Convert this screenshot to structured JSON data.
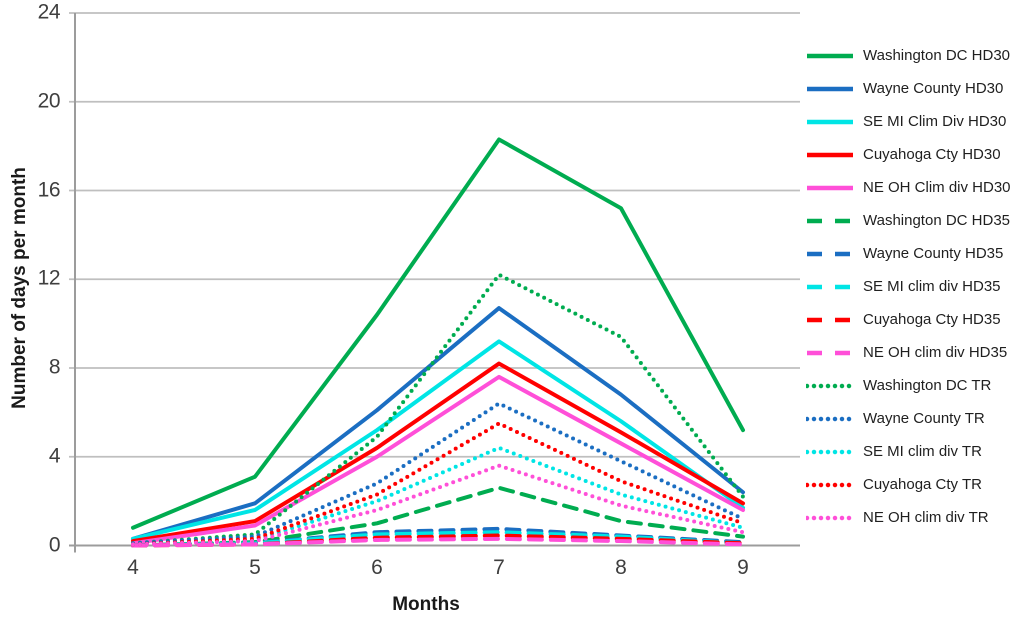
{
  "chart_data": {
    "type": "line",
    "title": "",
    "xlabel": "Months",
    "ylabel": "Number of days per month",
    "x": [
      4,
      5,
      6,
      7,
      8,
      9
    ],
    "x_tick_labels": [
      "4",
      "5",
      "6",
      "7",
      "8",
      "9"
    ],
    "y_ticks": [
      0,
      4,
      8,
      12,
      16,
      20,
      24
    ],
    "ylim": [
      0,
      24
    ],
    "xlim": [
      3.5,
      9.5
    ],
    "grid": "horizontal",
    "legend_position": "right",
    "series": [
      {
        "label": "Washington DC HD30",
        "color": "#00AC50",
        "style": "solid",
        "values": [
          0.8,
          3.1,
          10.4,
          18.3,
          15.2,
          5.2
        ]
      },
      {
        "label": "Wayne County HD30",
        "color": "#1B6EC2",
        "style": "solid",
        "values": [
          0.3,
          1.9,
          6.1,
          10.7,
          6.8,
          2.4
        ]
      },
      {
        "label": "SE MI Clim Div HD30",
        "color": "#00E5E5",
        "style": "solid",
        "values": [
          0.3,
          1.6,
          5.2,
          9.2,
          5.6,
          1.7
        ]
      },
      {
        "label": "Cuyahoga Cty HD30",
        "color": "#FF0000",
        "style": "solid",
        "values": [
          0.2,
          1.1,
          4.4,
          8.2,
          5.1,
          1.9
        ]
      },
      {
        "label": "NE OH Clim div HD30",
        "color": "#FF4FD8",
        "style": "solid",
        "values": [
          0.1,
          0.9,
          4.0,
          7.6,
          4.6,
          1.6
        ]
      },
      {
        "label": "Washington DC HD35",
        "color": "#00AC50",
        "style": "dashed",
        "values": [
          0.0,
          0.15,
          1.0,
          2.6,
          1.1,
          0.4
        ]
      },
      {
        "label": "Wayne County HD35",
        "color": "#1B6EC2",
        "style": "dashed",
        "values": [
          0.0,
          0.1,
          0.6,
          0.75,
          0.45,
          0.15
        ]
      },
      {
        "label": "SE MI clim div HD35",
        "color": "#00E5E5",
        "style": "dashed",
        "values": [
          0.0,
          0.1,
          0.5,
          0.6,
          0.4,
          0.1
        ]
      },
      {
        "label": "Cuyahoga Cty HD35",
        "color": "#FF0000",
        "style": "dashed",
        "values": [
          0.0,
          0.05,
          0.35,
          0.45,
          0.3,
          0.1
        ]
      },
      {
        "label": "NE OH clim div HD35",
        "color": "#FF4FD8",
        "style": "dashed",
        "values": [
          0.0,
          0.05,
          0.25,
          0.3,
          0.2,
          0.05
        ]
      },
      {
        "label": "Washington DC TR",
        "color": "#00AC50",
        "style": "dotted",
        "values": [
          0.1,
          0.5,
          4.9,
          12.2,
          9.4,
          2.2
        ]
      },
      {
        "label": "Wayne County TR",
        "color": "#1B6EC2",
        "style": "dotted",
        "values": [
          0.1,
          0.4,
          2.8,
          6.4,
          3.8,
          1.2
        ]
      },
      {
        "label": "SE MI clim div TR",
        "color": "#00E5E5",
        "style": "dotted",
        "values": [
          0.05,
          0.25,
          2.0,
          4.4,
          2.3,
          0.8
        ]
      },
      {
        "label": "Cuyahoga Cty TR",
        "color": "#FF0000",
        "style": "dotted",
        "values": [
          0.05,
          0.3,
          2.3,
          5.5,
          2.9,
          1.0
        ]
      },
      {
        "label": "NE OH clim div TR",
        "color": "#FF4FD8",
        "style": "dotted",
        "values": [
          0.05,
          0.2,
          1.6,
          3.6,
          1.8,
          0.6
        ]
      }
    ],
    "colors": {
      "gridline": "#BFBFBF",
      "axis": "#9C9C9C",
      "tick_text": "#3F3F3F",
      "title_text": "#1A1A1A",
      "background": "#FFFFFF"
    }
  }
}
